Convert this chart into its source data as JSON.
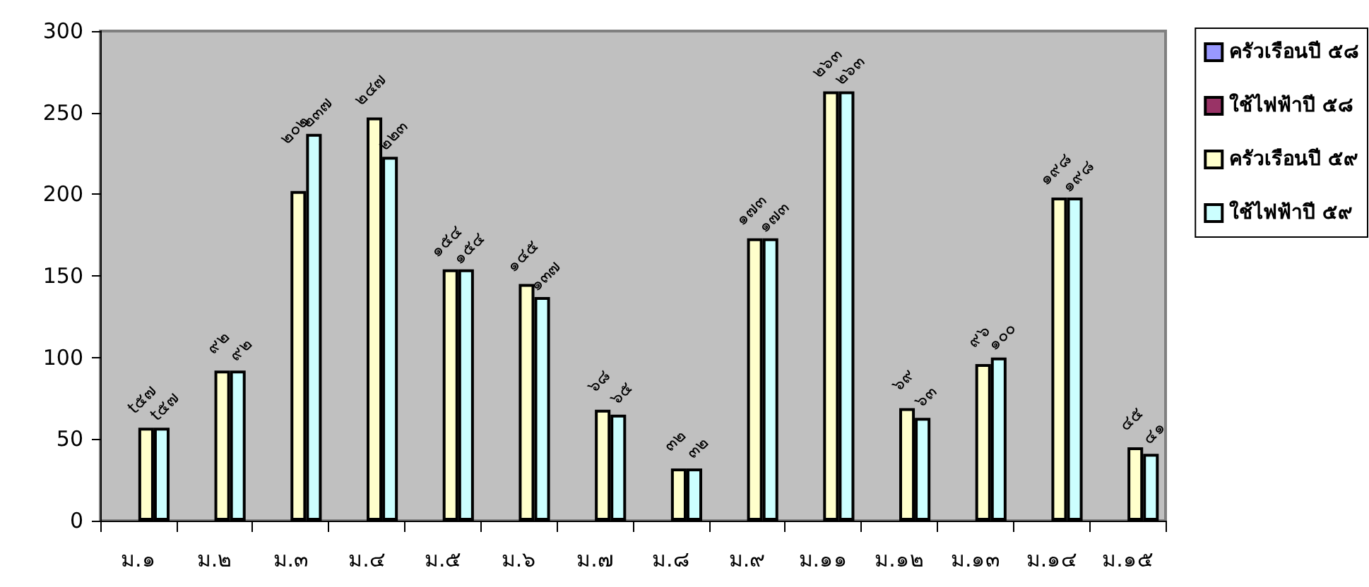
{
  "chart_data": {
    "type": "bar",
    "categories": [
      "ม.๑",
      "ม.๒",
      "ม.๓",
      "ม.๔",
      "ม.๕",
      "ม.๖",
      "ม.๗",
      "ม.๘",
      "ม.๙",
      "ม.๑๑",
      "ม.๑๒",
      "ม.๑๓",
      "ม.๑๔",
      "ม.๑๕"
    ],
    "series": [
      {
        "name": "ครัวเรือนปี ๕๘",
        "color": "#9999ff",
        "values": [
          null,
          null,
          null,
          null,
          null,
          null,
          null,
          null,
          null,
          null,
          null,
          null,
          null,
          null
        ]
      },
      {
        "name": "ใช้ไฟฟ้าปี ๕๘",
        "color": "#993366",
        "values": [
          null,
          null,
          null,
          null,
          null,
          null,
          null,
          null,
          null,
          null,
          null,
          null,
          null,
          null
        ]
      },
      {
        "name": "ครัวเรือนปี ๕๙",
        "color": "#ffffcc",
        "values": [
          57,
          92,
          202,
          247,
          154,
          145,
          68,
          32,
          173,
          263,
          69,
          96,
          198,
          45
        ],
        "value_labels": [
          "t๕๗",
          "๙๒",
          "๒๐๒",
          "๒๔๗",
          "๑๕๔",
          "๑๔๕",
          "๖๘",
          "๓๒",
          "๑๗๓",
          "๒๖๓",
          "๖๙",
          "๙๖",
          "๑๙๘",
          "๔๕"
        ]
      },
      {
        "name": "ใช้ไฟฟ้าปี ๕๙",
        "color": "#ccffff",
        "values": [
          57,
          92,
          237,
          223,
          154,
          137,
          65,
          32,
          173,
          263,
          63,
          100,
          198,
          41
        ],
        "value_labels": [
          "t๕๗",
          "๙๒",
          "๒๓๗",
          "๒๒๓",
          "๑๕๔",
          "๑๓๗",
          "๖๕",
          "๓๒",
          "๑๗๓",
          "๒๖๓",
          "๖๓",
          "๑๐๐",
          "๑๙๘",
          "๔๑"
        ]
      }
    ],
    "ylim": [
      0,
      300
    ],
    "yticks": [
      0,
      50,
      100,
      150,
      200,
      250,
      300
    ],
    "legend": "top right"
  }
}
